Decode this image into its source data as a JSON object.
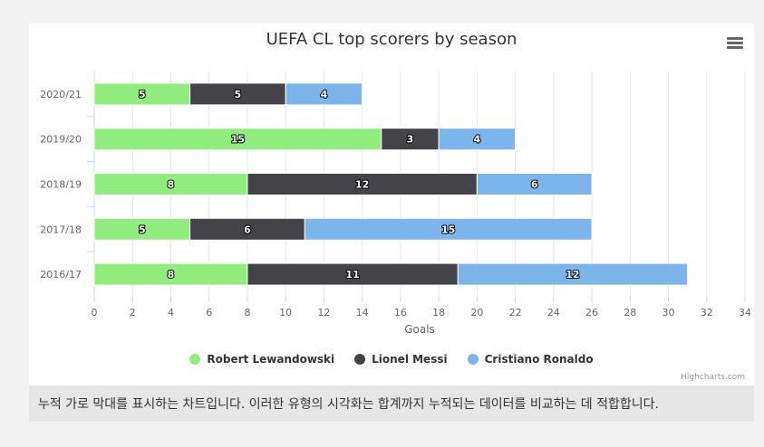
{
  "caption": "누적 가로 막대를 표시하는 차트입니다. 이러한 유형의 시각화는 합계까지 누적되는 데이터를 비교하는 데 적합합니다.",
  "credits": "Highcharts.com",
  "menu_icon": "hamburger-menu-icon",
  "colors": {
    "lewandowski": "#90ed7d",
    "messi": "#434348",
    "ronaldo": "#7cb5ec"
  },
  "chart_data": {
    "type": "bar",
    "stacked": true,
    "orientation": "horizontal",
    "title": "UEFA CL top scorers by season",
    "xlabel": "Goals",
    "categories": [
      "2020/21",
      "2019/20",
      "2018/19",
      "2017/18",
      "2016/17"
    ],
    "xlim": [
      0,
      34
    ],
    "ticks": [
      0,
      2,
      4,
      6,
      8,
      10,
      12,
      14,
      16,
      18,
      20,
      22,
      24,
      26,
      28,
      30,
      32,
      34
    ],
    "grid": true,
    "legend_position": "bottom-center",
    "series": [
      {
        "name": "Robert Lewandowski",
        "color": "#90ed7d",
        "values": [
          5,
          15,
          8,
          5,
          8
        ]
      },
      {
        "name": "Lionel Messi",
        "color": "#434348",
        "values": [
          5,
          3,
          12,
          6,
          11
        ]
      },
      {
        "name": "Cristiano Ronaldo",
        "color": "#7cb5ec",
        "values": [
          4,
          4,
          6,
          15,
          12
        ]
      }
    ]
  }
}
